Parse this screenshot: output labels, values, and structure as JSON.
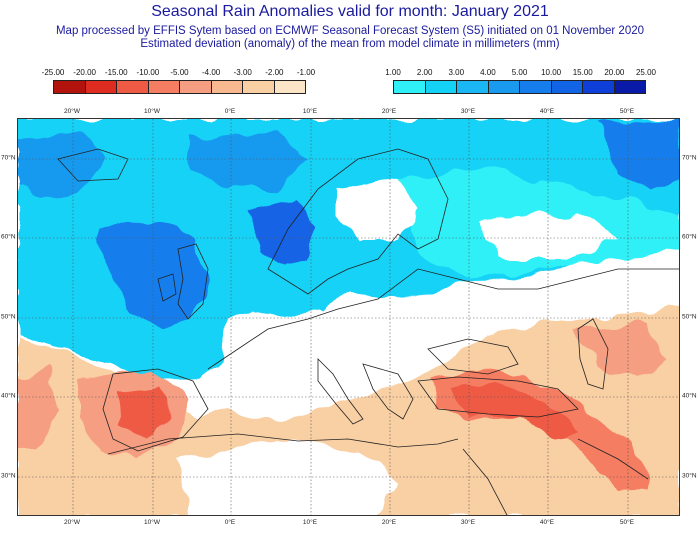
{
  "title": "Seasonal Rain Anomalies valid for month: January 2021",
  "subtitle_line1": "Map processed by EFFIS Sytem based on ECMWF Seasonal Forecast System (S5) initiated on 01 November 2020",
  "subtitle_line2": "Estimated deviation (anomaly) of the mean from model climate in millimeters (mm)",
  "legend_negative": {
    "labels": [
      "-25.00",
      "-20.00",
      "-15.00",
      "-10.00",
      "-5.00",
      "-4.00",
      "-3.00",
      "-2.00",
      "-1.00"
    ],
    "colors": [
      "#b2140d",
      "#de2c20",
      "#ef5a45",
      "#f57d62",
      "#f69e81",
      "#f8b991",
      "#f9cfa4",
      "#fbe5c6"
    ]
  },
  "legend_positive": {
    "labels": [
      "1.00",
      "2.00",
      "3.00",
      "4.00",
      "5.00",
      "10.00",
      "15.00",
      "20.00",
      "25.00"
    ],
    "colors": [
      "#2ef0f6",
      "#14d2f6",
      "#1bb6f4",
      "#199aef",
      "#167eec",
      "#1264e6",
      "#0e3fd8",
      "#0a1aa8"
    ]
  },
  "map": {
    "longitude_labels": [
      "20°W",
      "10°W",
      "0°E",
      "10°E",
      "20°E",
      "30°E",
      "40°E",
      "50°E"
    ],
    "latitude_labels": [
      "70°N",
      "60°N",
      "50°N",
      "40°N",
      "30°N"
    ]
  },
  "colors": {
    "title": "#1a1a9e",
    "land_outline": "#222222"
  }
}
